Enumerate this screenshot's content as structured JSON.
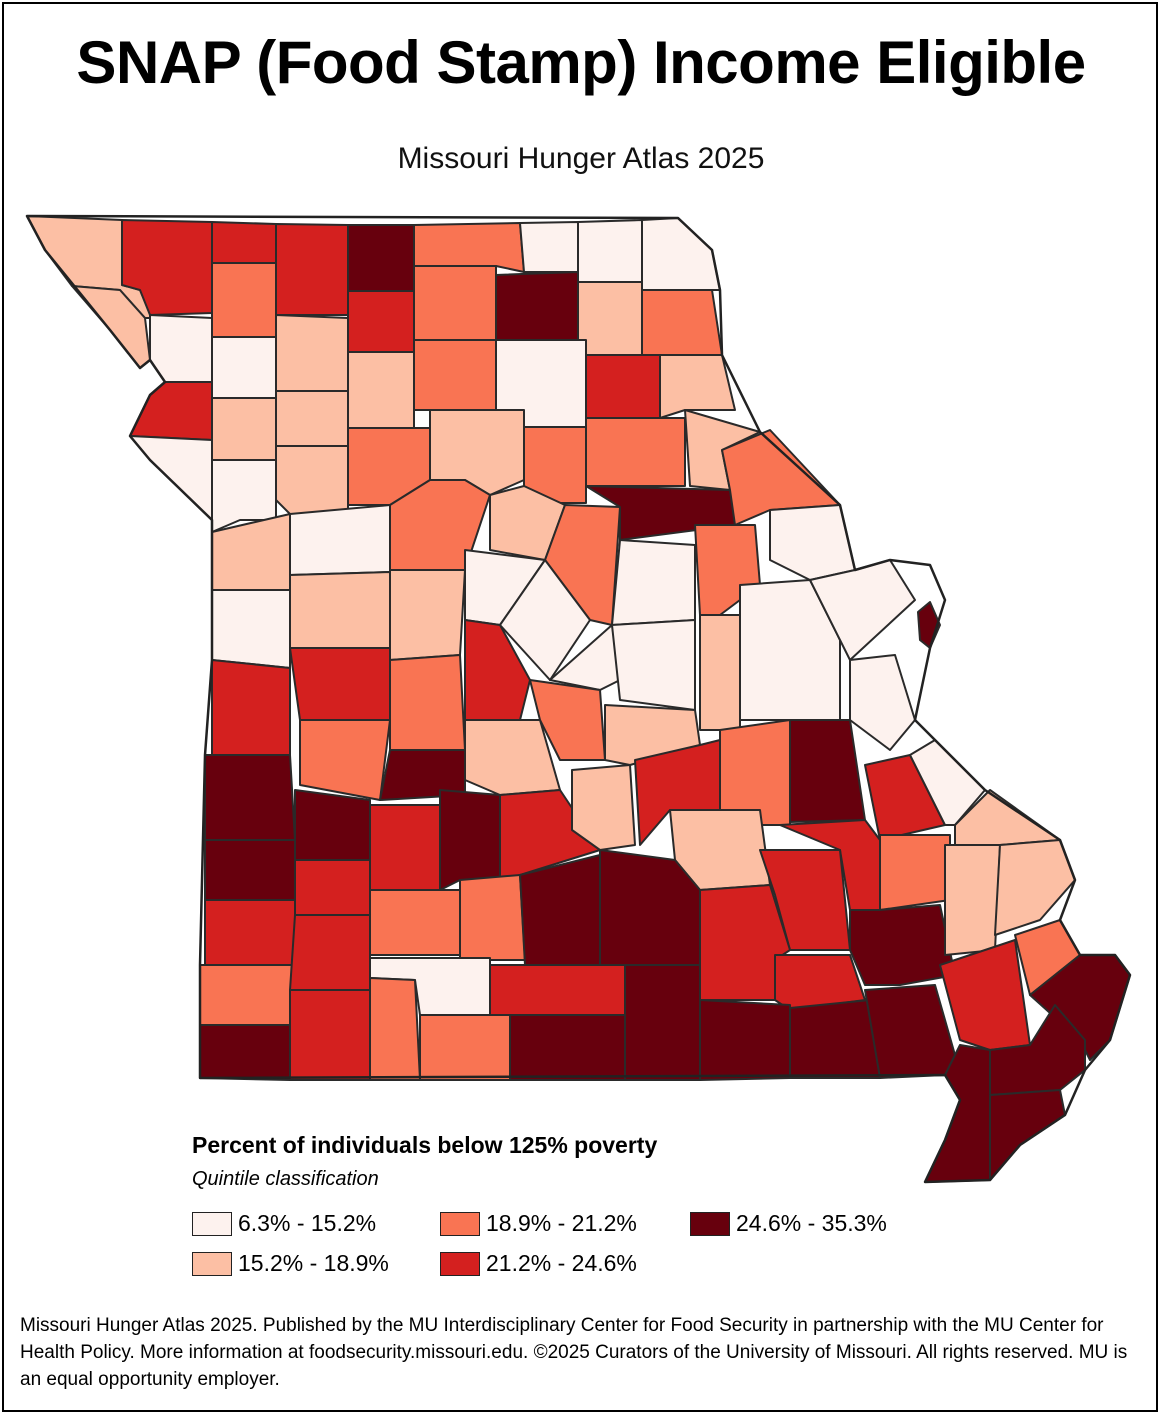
{
  "title": "SNAP (Food Stamp) Income Eligible",
  "subtitle": "Missouri Hunger Atlas 2025",
  "legend": {
    "title": "Percent of individuals below 125% poverty",
    "subtitle": "Quintile classification",
    "classes": [
      {
        "label": "6.3% - 15.2%",
        "color": "#fdf2ee",
        "min": 6.3,
        "max": 15.2
      },
      {
        "label": "15.2% - 18.9%",
        "color": "#fcbfa4",
        "min": 15.2,
        "max": 18.9
      },
      {
        "label": "18.9% - 21.2%",
        "color": "#f97453",
        "min": 18.9,
        "max": 21.2
      },
      {
        "label": "21.2% - 24.6%",
        "color": "#d4201f",
        "min": 21.2,
        "max": 24.6
      },
      {
        "label": "24.6% - 35.3%",
        "color": "#67000d",
        "min": 24.6,
        "max": 35.3
      }
    ]
  },
  "footer": "Missouri Hunger Atlas 2025. Published by the MU Interdisciplinary Center for Food Security in partnership with the MU Center for Health Policy. More information at foodsecurity.missouri.edu. ©2025 Curators of the University of Missouri. All rights reserved. MU is an equal opportunity employer."
}
